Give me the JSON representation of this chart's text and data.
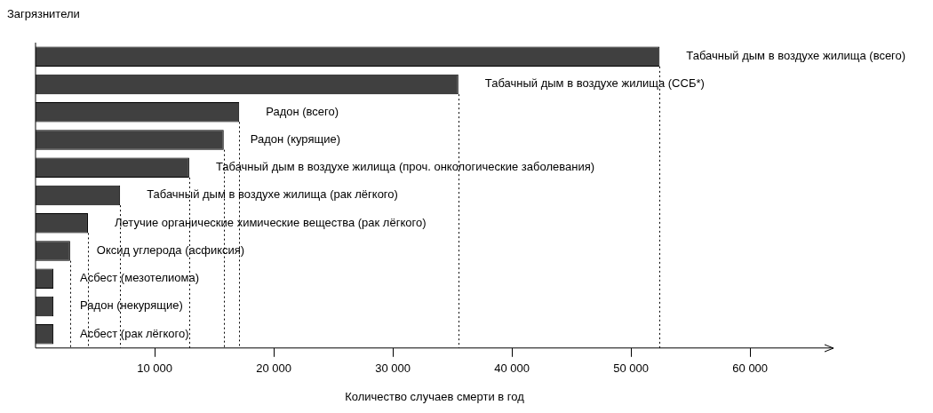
{
  "chart_data": {
    "type": "bar",
    "orientation": "horizontal",
    "ylabel": "Загрязнители",
    "xlabel": "Количество случаев смерти в год",
    "categories": [
      "Табачный дым в воздухе жилища (всего)",
      "Табачный дым в воздухе жилища (ССБ*)",
      "Радон (всего)",
      "Радон (курящие)",
      "Табачный дым в воздухе жилища (проч. онкологические заболевания)",
      "Табачный дым в воздухе жилища (рак лёгкого)",
      "Летучие органические химические вещества (рак лёгкого)",
      "Оксид углерода (асфиксия)",
      "Асбест (мезотелиома)",
      "Радон (некурящие)",
      "Асбест (рак лёгкого)"
    ],
    "values": [
      52400,
      35500,
      17100,
      15800,
      12900,
      7100,
      4400,
      2900,
      1500,
      1500,
      1500
    ],
    "color": "#404040",
    "xlim": [
      0,
      67000
    ],
    "xticks": [
      {
        "value": 10000,
        "label": "10 000"
      },
      {
        "value": 20000,
        "label": "20 000"
      },
      {
        "value": 30000,
        "label": "30 000"
      },
      {
        "value": 40000,
        "label": "40 000"
      },
      {
        "value": 50000,
        "label": "50 000"
      },
      {
        "value": 60000,
        "label": "60 000"
      }
    ],
    "ref_lines": [
      {
        "axis": "x",
        "value": 52400,
        "line_style": "dotted"
      },
      {
        "axis": "x",
        "value": 35500,
        "line_style": "dotted"
      },
      {
        "axis": "x",
        "value": 17100,
        "line_style": "dotted"
      },
      {
        "axis": "x",
        "value": 15800,
        "line_style": "dotted"
      },
      {
        "axis": "x",
        "value": 12900,
        "line_style": "dotted"
      },
      {
        "axis": "x",
        "value": 7100,
        "line_style": "dotted"
      },
      {
        "axis": "x",
        "value": 4400,
        "line_style": "dotted"
      },
      {
        "axis": "x",
        "value": 2900,
        "line_style": "dotted"
      }
    ],
    "tick_labels": "x",
    "grid": false,
    "legend": false
  }
}
